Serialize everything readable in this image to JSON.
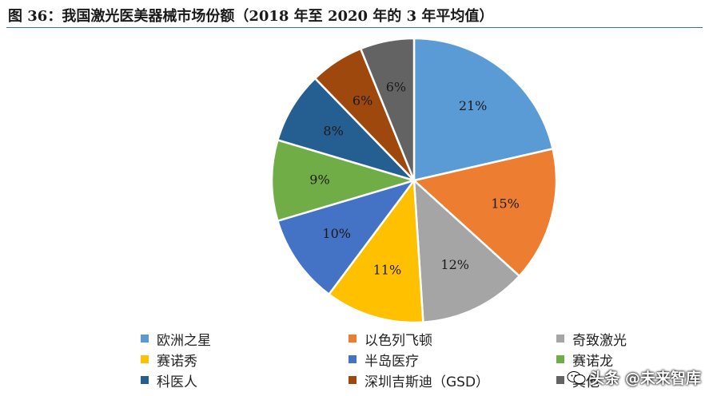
{
  "figure": {
    "title": "图 36：我国激光医美器械市场份额（2018 年至 2020 年的 3 年平均值）"
  },
  "chart_data": {
    "type": "pie",
    "title": "",
    "start_angle_deg": 0,
    "direction": "clockwise",
    "legend_placement": "bottom",
    "slices": [
      {
        "name": "欧洲之星",
        "value": 21,
        "label": "21%",
        "color": "#5b9bd5"
      },
      {
        "name": "以色列飞顿",
        "value": 15,
        "label": "15%",
        "color": "#ed7d31"
      },
      {
        "name": "奇致激光",
        "value": 12,
        "label": "12%",
        "color": "#a5a5a5"
      },
      {
        "name": "赛诺秀",
        "value": 11,
        "label": "11%",
        "color": "#ffc000"
      },
      {
        "name": "半岛医疗",
        "value": 10,
        "label": "10%",
        "color": "#4472c4"
      },
      {
        "name": "赛诺龙",
        "value": 9,
        "label": "9%",
        "color": "#70ad47"
      },
      {
        "name": "科医人",
        "value": 8,
        "label": "8%",
        "color": "#255e91"
      },
      {
        "name": "深圳吉斯迪（GSD）",
        "value": 6,
        "label": "6%",
        "color": "#9e480e"
      },
      {
        "name": "其他",
        "value": 6,
        "label": "6%",
        "color": "#636363"
      }
    ]
  },
  "watermark": {
    "text": "头条 @未来智库",
    "logo": "wechat-logo"
  }
}
